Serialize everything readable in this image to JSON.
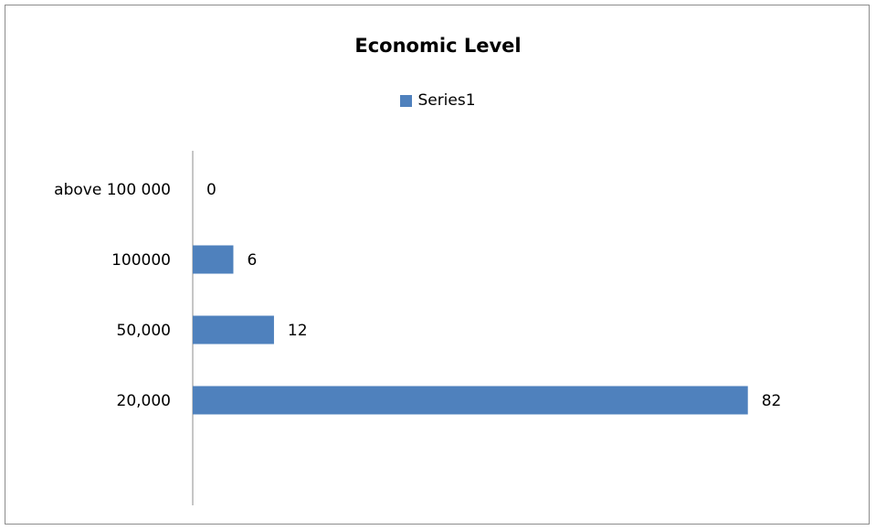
{
  "chart_data": {
    "type": "bar",
    "orientation": "horizontal",
    "title": "Economic Level",
    "categories": [
      "20,000",
      "50,000",
      "100000",
      "above 100 000"
    ],
    "series": [
      {
        "name": "Series1",
        "values": [
          82,
          12,
          6,
          0
        ],
        "color": "#4f81bd"
      }
    ],
    "xlim": [
      0,
      90
    ],
    "legend_position": "top",
    "grid": false
  }
}
